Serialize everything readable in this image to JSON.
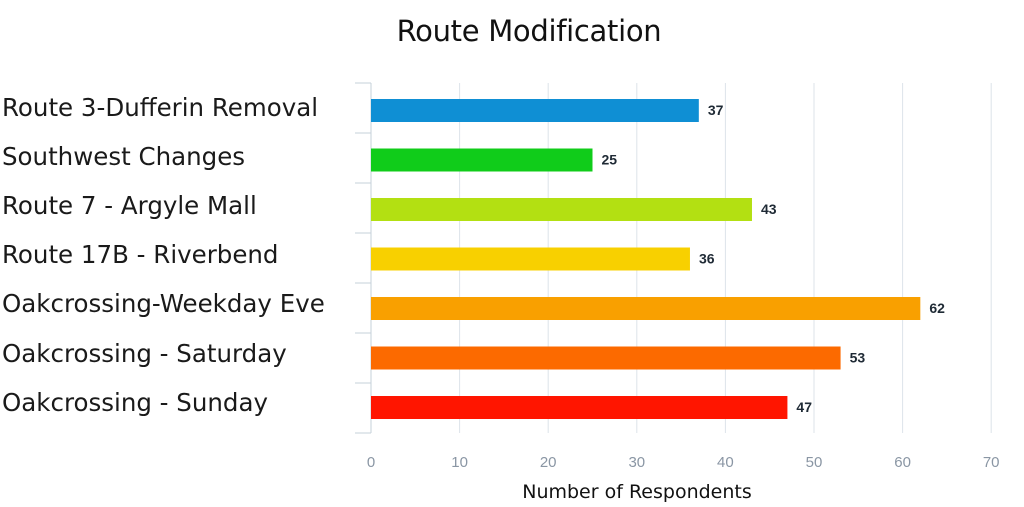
{
  "chart_data": {
    "type": "bar",
    "orientation": "horizontal",
    "title": "Route Modification",
    "xlabel": "Number of Respondents",
    "ylabel": "",
    "categories": [
      "Route 3-Dufferin Removal",
      "Southwest Changes",
      "Route 7 - Argyle Mall",
      "Route 17B - Riverbend",
      "Oakcrossing-Weekday Eve",
      "Oakcrossing - Saturday",
      "Oakcrossing - Sunday"
    ],
    "values": [
      37,
      25,
      43,
      36,
      62,
      53,
      47
    ],
    "colors": [
      "#0f8fd4",
      "#10cc1a",
      "#b3e012",
      "#f8d000",
      "#f9a000",
      "#fc6a00",
      "#ff1500"
    ],
    "xlim": [
      0,
      70
    ],
    "x_ticks": [
      0,
      10,
      20,
      30,
      40,
      50,
      60,
      70
    ],
    "grid": "vertical",
    "data_labels": true,
    "legend": "none"
  }
}
